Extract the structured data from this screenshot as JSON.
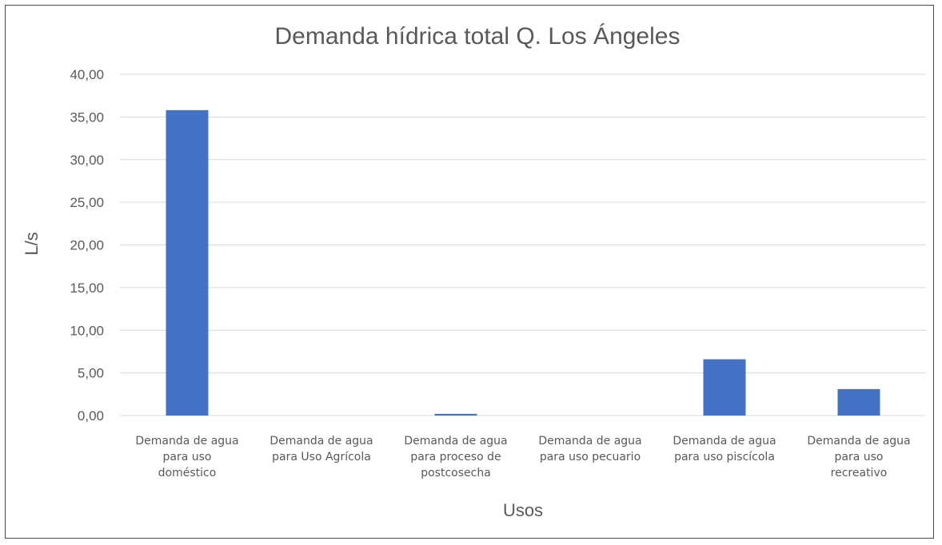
{
  "chart_data": {
    "type": "bar",
    "title": "Demanda hídrica total Q. Los Ángeles",
    "xlabel": "Usos",
    "ylabel": "L/s",
    "ylim": [
      0,
      40
    ],
    "yticks": [
      "0,00",
      "5,00",
      "10,00",
      "15,00",
      "20,00",
      "25,00",
      "30,00",
      "35,00",
      "40,00"
    ],
    "categories": [
      [
        "Demanda de agua",
        "para uso",
        "doméstico"
      ],
      [
        "Demanda de agua",
        "para Uso Agrícola"
      ],
      [
        "Demanda de agua",
        "para proceso de",
        "postcosecha"
      ],
      [
        "Demanda de agua",
        "para uso pecuario"
      ],
      [
        "Demanda de agua",
        "para uso piscícola"
      ],
      [
        "Demanda de agua",
        "para uso",
        "recreativo"
      ]
    ],
    "values": [
      35.8,
      0.0,
      0.2,
      0.0,
      6.6,
      3.1
    ],
    "grid": true,
    "legend": "none",
    "colors": {
      "bar": "#4472C4",
      "grid": "#d9d9d9",
      "text": "#595959",
      "border": "#4a4a4a"
    }
  }
}
